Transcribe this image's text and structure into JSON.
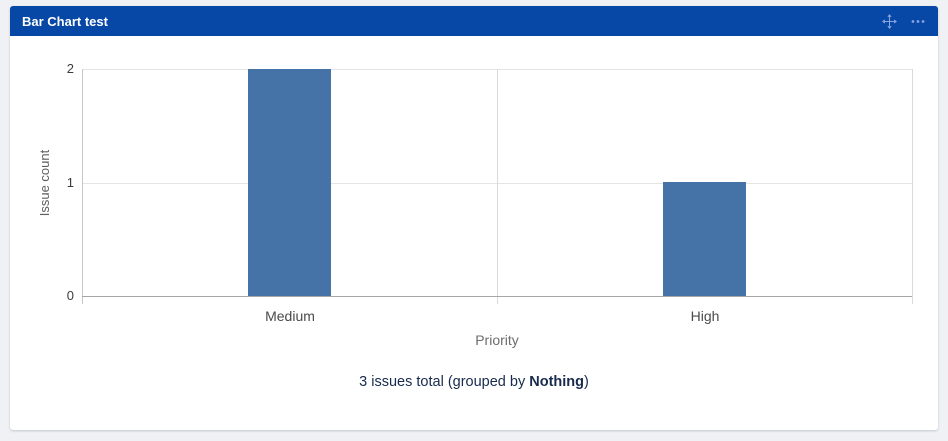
{
  "widget": {
    "title": "Bar Chart test",
    "header_bg": "#0747A6",
    "icon_color": "#8AA6DE",
    "icons": [
      "move-icon",
      "more-options-icon"
    ]
  },
  "colors": {
    "page_bg": "#F0F1F4",
    "card_bg": "#FFFFFF",
    "axis_line": "#C6C6C6",
    "gridline": "#E4E4E4",
    "baseline": "#A6A6A6"
  },
  "chart_data": {
    "type": "bar",
    "categories": [
      "Medium",
      "High"
    ],
    "values": [
      2,
      1
    ],
    "title": "",
    "xlabel": "Priority",
    "ylabel": "Issue count",
    "ylim": [
      0,
      2
    ],
    "yticks": [
      0,
      1,
      2
    ],
    "bar_color": "#4572A7",
    "grid": true,
    "legend": "none"
  },
  "footer": {
    "prefix": "3 issues total (grouped by ",
    "bold": "Nothing",
    "suffix": ")"
  }
}
